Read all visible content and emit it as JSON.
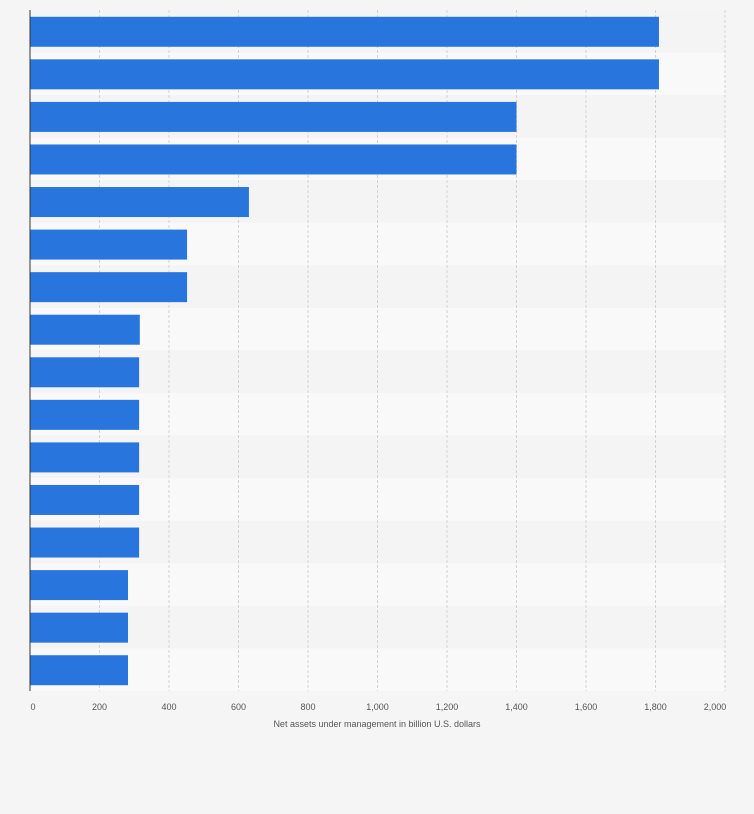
{
  "chart_data": {
    "type": "bar",
    "orientation": "horizontal",
    "title": "",
    "xlabel": "Net assets under management in billion U.S. dollars",
    "ylabel": "",
    "xlim": [
      0,
      2000
    ],
    "xticks": [
      0,
      200,
      400,
      600,
      800,
      1000,
      1200,
      1400,
      1600,
      1800,
      2000
    ],
    "xtick_labels": [
      "0",
      "200",
      "400",
      "600",
      "800",
      "1,000",
      "1,200",
      "1,400",
      "1,600",
      "1,800",
      "2,000"
    ],
    "grid": true,
    "categories": [
      "",
      "",
      "",
      "",
      "",
      "",
      "",
      "",
      "",
      "",
      "",
      "",
      "",
      "",
      "",
      ""
    ],
    "values": [
      1810,
      1810,
      1400,
      1400,
      630,
      452,
      452,
      316,
      314,
      314,
      314,
      314,
      314,
      282,
      282,
      282
    ],
    "bar_color": "#2876dd",
    "grid_color": "#d3d3d3",
    "axis_color": "#333333",
    "band_colors": [
      "#f4f4f4",
      "#f9f9f9"
    ]
  }
}
